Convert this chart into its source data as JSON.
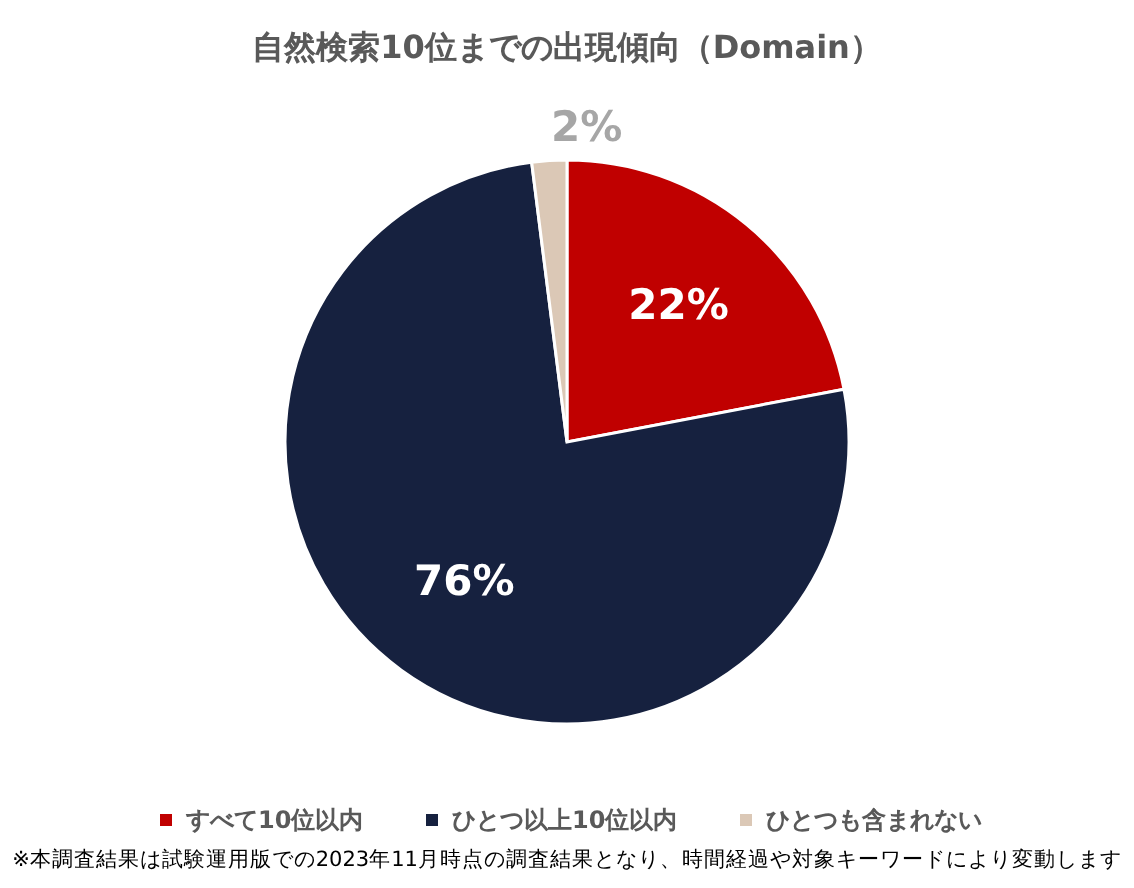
{
  "chart_data": {
    "type": "pie",
    "title": "自然検索10位までの出現傾向（Domain）",
    "categories": [
      "すべて10位以内",
      "ひとつ以上10位以内",
      "ひとつも含まれない"
    ],
    "values": [
      22,
      76,
      2
    ],
    "colors": [
      "#c00000",
      "#16213f",
      "#dbc8b6"
    ],
    "value_labels": [
      "22%",
      "76%",
      "2%"
    ],
    "legend": "bottom",
    "annotations": [
      "※本調査結果は試験運用版での2023年11月時点の調査結果となり、時間経過や対象キーワードにより変動します"
    ]
  }
}
